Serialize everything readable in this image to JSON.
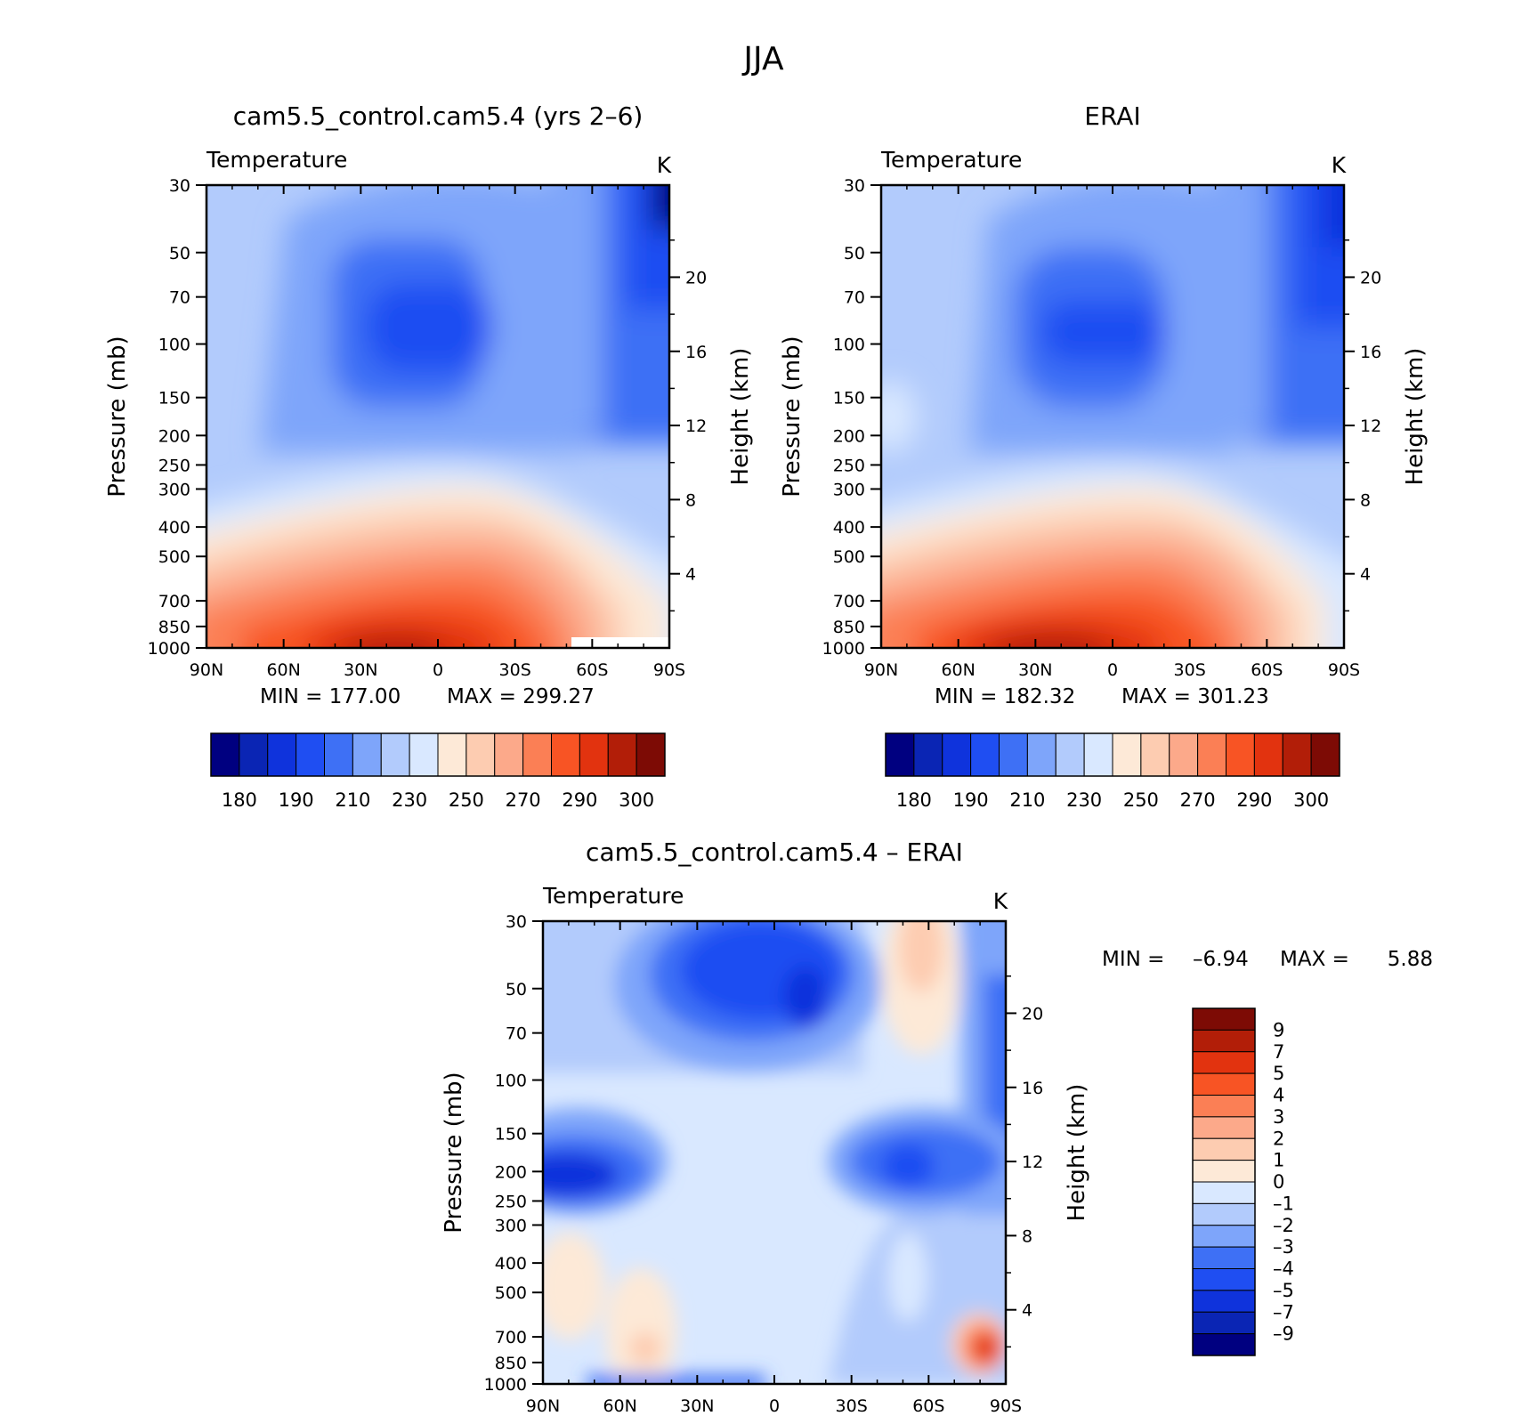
{
  "figure_title": "JJA",
  "colors": {
    "temp_palette": [
      "#000080",
      "#0a25b4",
      "#0f33dc",
      "#1f4ef2",
      "#3e70f5",
      "#7ea5fa",
      "#b2cbfc",
      "#d9e8ff",
      "#fde9d7",
      "#fdccb1",
      "#fca98a",
      "#fb7f55",
      "#f85424",
      "#e2330f",
      "#b21e08",
      "#7d0b05"
    ],
    "diff_palette": [
      "#000080",
      "#0a25b4",
      "#0f33dc",
      "#1f4ef2",
      "#3e70f5",
      "#7ea5fa",
      "#b2cbfc",
      "#d9e8ff",
      "#fde9d7",
      "#fdccb1",
      "#fca98a",
      "#fb7f55",
      "#f85424",
      "#e2330f",
      "#b21e08",
      "#7d0b05"
    ]
  },
  "chart_data": [
    {
      "type": "heatmap",
      "title": "cam5.5_control.cam5.4 (yrs 2–6)",
      "variable_label": "Temperature",
      "units": "K",
      "xlabel": "",
      "ylabel": "Pressure (mb)",
      "ylabel_right": "Height (km)",
      "x_ticks": [
        "90N",
        "60N",
        "30N",
        "0",
        "30S",
        "60S",
        "90S"
      ],
      "y_ticks": [
        "30",
        "50",
        "70",
        "100",
        "150",
        "200",
        "250",
        "300",
        "400",
        "500",
        "700",
        "850",
        "1000"
      ],
      "y_ticks_right": [
        "20",
        "16",
        "12",
        "8",
        "4"
      ],
      "y_log": true,
      "ylim": [
        1000,
        30
      ],
      "xlim": [
        "90N",
        "90S"
      ],
      "min_label": "MIN =  177.00",
      "max_label": "MAX =  299.27",
      "min": 177.0,
      "max": 299.27,
      "colorbar_labels": [
        "180",
        "190",
        "210",
        "230",
        "250",
        "270",
        "290",
        "300"
      ],
      "legend_placement": "bottom"
    },
    {
      "type": "heatmap",
      "title": "ERAI",
      "variable_label": "Temperature",
      "units": "K",
      "xlabel": "",
      "ylabel": "Pressure (mb)",
      "ylabel_right": "Height (km)",
      "x_ticks": [
        "90N",
        "60N",
        "30N",
        "0",
        "30S",
        "60S",
        "90S"
      ],
      "y_ticks": [
        "30",
        "50",
        "70",
        "100",
        "150",
        "200",
        "250",
        "300",
        "400",
        "500",
        "700",
        "850",
        "1000"
      ],
      "y_ticks_right": [
        "20",
        "16",
        "12",
        "8",
        "4"
      ],
      "y_log": true,
      "ylim": [
        1000,
        30
      ],
      "xlim": [
        "90N",
        "90S"
      ],
      "min_label": "MIN =  182.32",
      "max_label": "MAX =  301.23",
      "min": 182.32,
      "max": 301.23,
      "colorbar_labels": [
        "180",
        "190",
        "210",
        "230",
        "250",
        "270",
        "290",
        "300"
      ],
      "legend_placement": "bottom"
    },
    {
      "type": "heatmap",
      "title": "cam5.5_control.cam5.4 – ERAI",
      "variable_label": "Temperature",
      "units": "K",
      "xlabel": "",
      "ylabel": "Pressure (mb)",
      "ylabel_right": "Height (km)",
      "x_ticks": [
        "90N",
        "60N",
        "30N",
        "0",
        "30S",
        "60S",
        "90S"
      ],
      "y_ticks": [
        "30",
        "50",
        "70",
        "100",
        "150",
        "200",
        "250",
        "300",
        "400",
        "500",
        "700",
        "850",
        "1000"
      ],
      "y_ticks_right": [
        "20",
        "16",
        "12",
        "8",
        "4"
      ],
      "y_log": true,
      "ylim": [
        1000,
        30
      ],
      "xlim": [
        "90N",
        "90S"
      ],
      "min_label": "MIN =",
      "min_value": "–6.94",
      "max_label": "MAX =",
      "max_value": "5.88",
      "min": -6.94,
      "max": 5.88,
      "colorbar_labels": [
        "9",
        "7",
        "5",
        "4",
        "3",
        "2",
        "1",
        "0",
        "–1",
        "–2",
        "–3",
        "–4",
        "–5",
        "–7",
        "–9"
      ],
      "legend_placement": "right"
    }
  ]
}
